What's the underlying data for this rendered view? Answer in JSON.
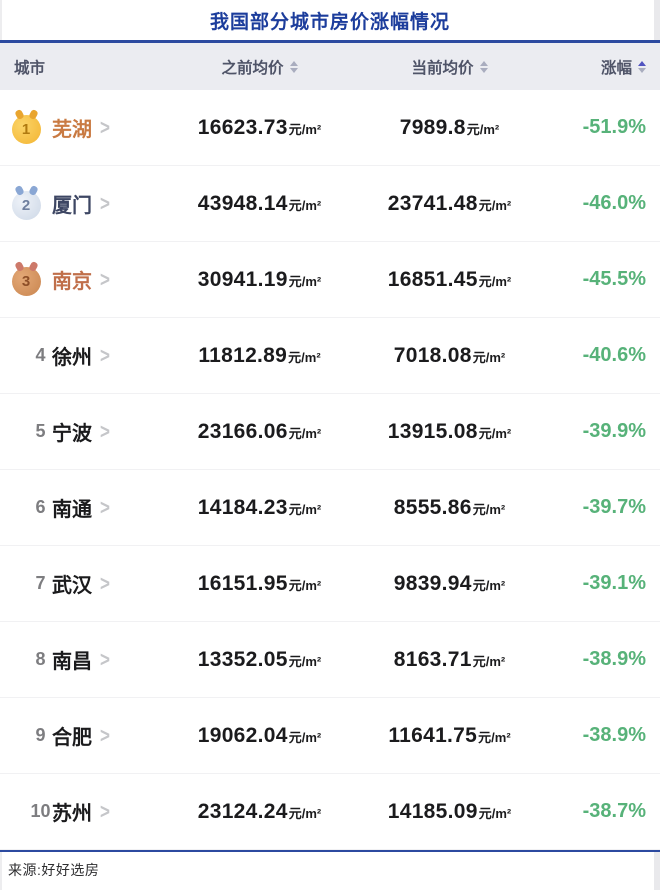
{
  "page": {
    "title": "我国部分城市房价涨幅情况",
    "source": "来源:好好选房"
  },
  "colors": {
    "title_blue": "#1c3d9c",
    "divider_blue": "#2c4aa0",
    "header_bg": "#ebecf1",
    "header_text": "#4f5468",
    "change_green": "#57b279",
    "sort_active": "#5053c0",
    "sort_inactive": "#a9adbf",
    "city_gold": "#c97a42",
    "city_silver": "#3d4663",
    "city_bronze": "#c06f4a",
    "city_default": "#1b1b1d"
  },
  "table": {
    "unit_suffix": "元/m²",
    "columns": [
      {
        "key": "city",
        "label": "城市",
        "sortable": false,
        "sort": "none"
      },
      {
        "key": "prev",
        "label": "之前均价",
        "sortable": true,
        "sort": "none"
      },
      {
        "key": "curr",
        "label": "当前均价",
        "sortable": true,
        "sort": "none"
      },
      {
        "key": "change",
        "label": "涨幅",
        "sortable": true,
        "sort": "asc"
      }
    ],
    "rows": [
      {
        "rank": 1,
        "medal": "gold",
        "city": "芜湖",
        "prev": "16623.73",
        "curr": "7989.8",
        "change": "-51.9%"
      },
      {
        "rank": 2,
        "medal": "silver",
        "city": "厦门",
        "prev": "43948.14",
        "curr": "23741.48",
        "change": "-46.0%"
      },
      {
        "rank": 3,
        "medal": "bronze",
        "city": "南京",
        "prev": "30941.19",
        "curr": "16851.45",
        "change": "-45.5%"
      },
      {
        "rank": 4,
        "medal": null,
        "city": "徐州",
        "prev": "11812.89",
        "curr": "7018.08",
        "change": "-40.6%"
      },
      {
        "rank": 5,
        "medal": null,
        "city": "宁波",
        "prev": "23166.06",
        "curr": "13915.08",
        "change": "-39.9%"
      },
      {
        "rank": 6,
        "medal": null,
        "city": "南通",
        "prev": "14184.23",
        "curr": "8555.86",
        "change": "-39.7%"
      },
      {
        "rank": 7,
        "medal": null,
        "city": "武汉",
        "prev": "16151.95",
        "curr": "9839.94",
        "change": "-39.1%"
      },
      {
        "rank": 8,
        "medal": null,
        "city": "南昌",
        "prev": "13352.05",
        "curr": "8163.71",
        "change": "-38.9%"
      },
      {
        "rank": 9,
        "medal": null,
        "city": "合肥",
        "prev": "19062.04",
        "curr": "11641.75",
        "change": "-38.9%"
      },
      {
        "rank": 10,
        "medal": null,
        "city": "苏州",
        "prev": "23124.24",
        "curr": "14185.09",
        "change": "-38.7%"
      }
    ]
  }
}
